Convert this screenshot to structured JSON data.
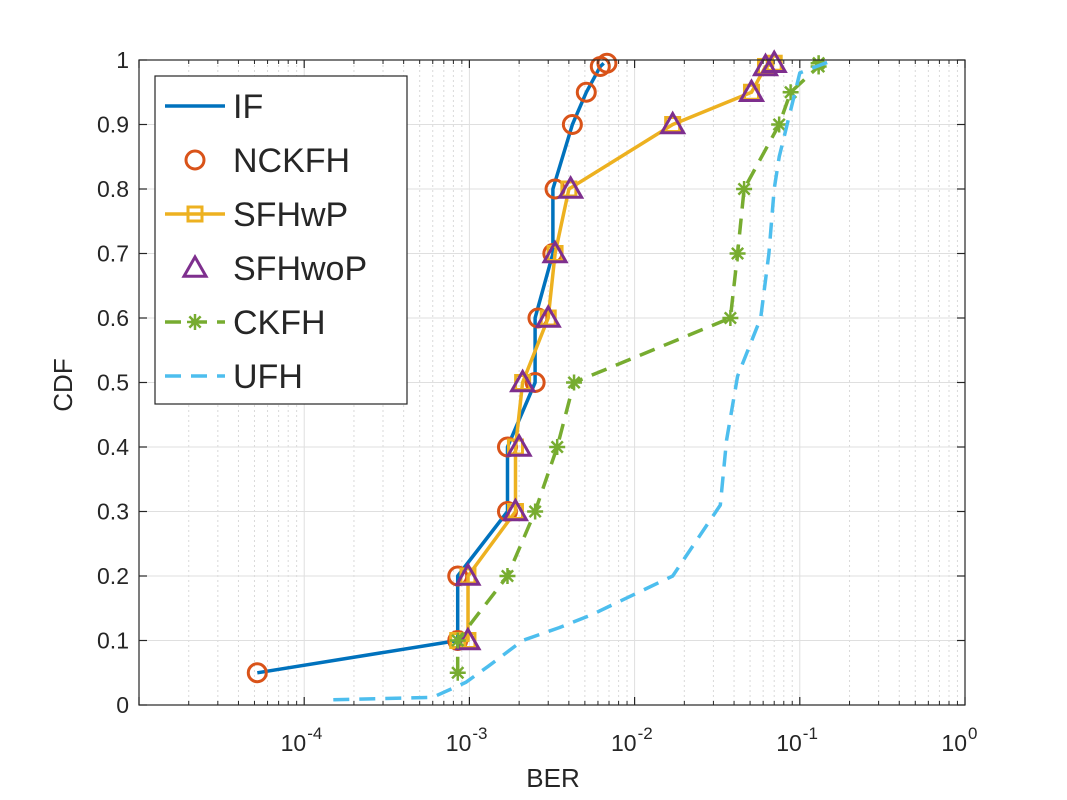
{
  "chart_data": {
    "type": "line",
    "title": "",
    "xlabel": "BER",
    "ylabel": "CDF",
    "xscale": "log",
    "xlim": [
      1e-05,
      1
    ],
    "ylim": [
      0,
      1
    ],
    "grid": true,
    "legend_position": "top-left",
    "x_tick_labels": [
      {
        "base": "10",
        "exp": "-4",
        "value": 0.0001
      },
      {
        "base": "10",
        "exp": "-3",
        "value": 0.001
      },
      {
        "base": "10",
        "exp": "-2",
        "value": 0.01
      },
      {
        "base": "10",
        "exp": "-1",
        "value": 0.1
      },
      {
        "base": "10",
        "exp": "0",
        "value": 1
      }
    ],
    "y_ticks": [
      "0",
      "0.1",
      "0.2",
      "0.3",
      "0.4",
      "0.5",
      "0.6",
      "0.7",
      "0.8",
      "0.9",
      "1"
    ],
    "series": [
      {
        "name": "IF",
        "color": "#0072BD",
        "line": "solid",
        "marker": "none",
        "points": [
          [
            5.2e-05,
            0.05
          ],
          [
            0.00085,
            0.1
          ],
          [
            0.00085,
            0.2
          ],
          [
            0.0017,
            0.3
          ],
          [
            0.0017,
            0.4
          ],
          [
            0.0025,
            0.5
          ],
          [
            0.0025,
            0.6
          ],
          [
            0.0032,
            0.7
          ],
          [
            0.0032,
            0.8
          ],
          [
            0.0042,
            0.9
          ],
          [
            0.0051,
            0.95
          ],
          [
            0.0062,
            0.99
          ],
          [
            0.0065,
            0.995
          ]
        ]
      },
      {
        "name": "NCKFH",
        "color": "#D95319",
        "line": "none",
        "marker": "circle",
        "points": [
          [
            5.2e-05,
            0.05
          ],
          [
            0.00085,
            0.1
          ],
          [
            0.00085,
            0.2
          ],
          [
            0.0017,
            0.3
          ],
          [
            0.0017,
            0.4
          ],
          [
            0.0025,
            0.5
          ],
          [
            0.0026,
            0.6
          ],
          [
            0.0032,
            0.7
          ],
          [
            0.0033,
            0.8
          ],
          [
            0.0042,
            0.9
          ],
          [
            0.0051,
            0.95
          ],
          [
            0.0062,
            0.99
          ],
          [
            0.0068,
            0.995
          ]
        ]
      },
      {
        "name": "SFHwP",
        "color": "#EDB120",
        "line": "solid",
        "marker": "square",
        "points": [
          [
            0.00085,
            0.1
          ],
          [
            0.00098,
            0.1
          ],
          [
            0.00098,
            0.2
          ],
          [
            0.0019,
            0.3
          ],
          [
            0.0019,
            0.4
          ],
          [
            0.0021,
            0.5
          ],
          [
            0.003,
            0.6
          ],
          [
            0.0033,
            0.7
          ],
          [
            0.004,
            0.8
          ],
          [
            0.017,
            0.9
          ],
          [
            0.051,
            0.95
          ],
          [
            0.062,
            0.99
          ],
          [
            0.07,
            0.995
          ]
        ]
      },
      {
        "name": "SFHwoP",
        "color": "#7E2F8E",
        "line": "none",
        "marker": "triangle",
        "points": [
          [
            0.00098,
            0.1
          ],
          [
            0.00098,
            0.2
          ],
          [
            0.0019,
            0.3
          ],
          [
            0.002,
            0.4
          ],
          [
            0.0021,
            0.5
          ],
          [
            0.003,
            0.6
          ],
          [
            0.0033,
            0.7
          ],
          [
            0.0041,
            0.8
          ],
          [
            0.017,
            0.9
          ],
          [
            0.051,
            0.95
          ],
          [
            0.062,
            0.99
          ],
          [
            0.07,
            0.995
          ]
        ]
      },
      {
        "name": "CKFH",
        "color": "#77AC30",
        "line": "dashed",
        "marker": "asterisk",
        "points": [
          [
            0.00085,
            0.05
          ],
          [
            0.00085,
            0.1
          ],
          [
            0.0017,
            0.2
          ],
          [
            0.0025,
            0.3
          ],
          [
            0.0034,
            0.4
          ],
          [
            0.0043,
            0.5
          ],
          [
            0.038,
            0.6
          ],
          [
            0.042,
            0.7
          ],
          [
            0.046,
            0.8
          ],
          [
            0.075,
            0.9
          ],
          [
            0.088,
            0.95
          ],
          [
            0.13,
            0.99
          ],
          [
            0.13,
            0.995
          ]
        ]
      },
      {
        "name": "UFH",
        "color": "#4DBEEE",
        "line": "dashed",
        "marker": "none",
        "points": [
          [
            0.00015,
            0.008
          ],
          [
            0.0006,
            0.012
          ],
          [
            0.00095,
            0.035
          ],
          [
            0.0013,
            0.06
          ],
          [
            0.0021,
            0.1
          ],
          [
            0.0035,
            0.12
          ],
          [
            0.0055,
            0.14
          ],
          [
            0.017,
            0.2
          ],
          [
            0.033,
            0.31
          ],
          [
            0.036,
            0.41
          ],
          [
            0.042,
            0.51
          ],
          [
            0.058,
            0.6
          ],
          [
            0.065,
            0.7
          ],
          [
            0.07,
            0.8
          ],
          [
            0.075,
            0.85
          ],
          [
            0.1,
            0.98
          ],
          [
            0.16,
            1
          ]
        ]
      }
    ]
  }
}
